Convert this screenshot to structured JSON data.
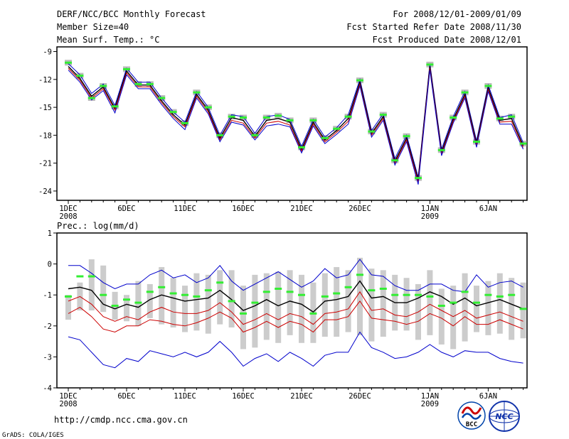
{
  "header": {
    "title": "DERF/NCC/BCC Monthly Forecast",
    "member_size": "Member Size=40",
    "variable": "Mean Surf. Temp.: °C",
    "period": "For 2008/12/01-2009/01/09",
    "fcst_started": "Fcst Started Refer Date 2008/11/30",
    "fcst_produced": "Fcst Produced Date 2008/12/01"
  },
  "footer": {
    "url": "http://cmdp.ncc.cma.gov.cn",
    "grads": "GrADS: COLA/IGES",
    "logo_bcc": "BCC",
    "logo_ncc": "NCC"
  },
  "colors": {
    "ensemble_mean": "#000000",
    "upper_member": "#0000cc",
    "lower_member": "#cc0000",
    "observed_marker": "#33ee33",
    "spread_bar": "#cccccc"
  },
  "chart_data": [
    {
      "type": "line",
      "title": "Mean Surf. Temp.: °C",
      "ylabel": "°C",
      "ylim": [
        -25,
        -8.5
      ],
      "yticks": [
        "-9",
        "-12",
        "-15",
        "-18",
        "-21",
        "-24"
      ],
      "ytick_values": [
        -9,
        -12,
        -15,
        -18,
        -21,
        -24
      ],
      "x_days": [
        1,
        2,
        3,
        4,
        5,
        6,
        7,
        8,
        9,
        10,
        11,
        12,
        13,
        14,
        15,
        16,
        17,
        18,
        19,
        20,
        21,
        22,
        23,
        24,
        25,
        26,
        27,
        28,
        29,
        30,
        31,
        32,
        33,
        34,
        35,
        36,
        37,
        38,
        39,
        40
      ],
      "xtick_days": [
        1,
        6,
        11,
        16,
        21,
        26,
        32,
        37
      ],
      "xtick_labels": [
        "1DEC",
        "6DEC",
        "11DEC",
        "16DEC",
        "21DEC",
        "26DEC",
        "1JAN",
        "6JAN"
      ],
      "xtick_years": [
        "2008",
        "",
        "",
        "",
        "",
        "",
        "2009",
        ""
      ],
      "series": [
        {
          "name": "upper",
          "color": "#0000cc",
          "values": [
            -10.3,
            -11.5,
            -13.5,
            -12.5,
            -14.8,
            -10.8,
            -12.3,
            -12.3,
            -14.0,
            -15.5,
            -16.6,
            -13.3,
            -15.0,
            -18.0,
            -15.8,
            -16.0,
            -17.8,
            -16.0,
            -15.8,
            -16.3,
            -19.2,
            -16.3,
            -18.2,
            -17.2,
            -15.8,
            -12.0,
            -17.5,
            -15.7,
            -20.5,
            -18.0,
            -22.5,
            -10.3,
            -19.5,
            -16.0,
            -13.3,
            -18.6,
            -12.6,
            -16.1,
            -15.8,
            -18.8
          ]
        },
        {
          "name": "mean",
          "color": "#000000",
          "values": [
            -10.6,
            -11.9,
            -13.8,
            -12.8,
            -15.1,
            -11.1,
            -12.6,
            -12.6,
            -14.3,
            -15.8,
            -16.9,
            -13.6,
            -15.3,
            -18.3,
            -16.1,
            -16.4,
            -18.1,
            -16.4,
            -16.2,
            -16.6,
            -19.5,
            -16.6,
            -18.5,
            -17.5,
            -16.2,
            -12.3,
            -17.8,
            -16.0,
            -20.8,
            -18.3,
            -22.8,
            -10.6,
            -19.8,
            -16.3,
            -13.6,
            -18.9,
            -12.9,
            -16.4,
            -16.2,
            -19.1
          ]
        },
        {
          "name": "lower",
          "color": "#cc0000",
          "values": [
            -10.8,
            -12.1,
            -14.0,
            -13.0,
            -15.3,
            -11.3,
            -12.8,
            -12.8,
            -14.5,
            -16.0,
            -17.1,
            -13.8,
            -15.5,
            -18.5,
            -16.4,
            -16.7,
            -18.3,
            -16.7,
            -16.5,
            -16.9,
            -19.7,
            -16.8,
            -18.7,
            -17.7,
            -16.5,
            -12.5,
            -18.0,
            -16.2,
            -21.0,
            -18.5,
            -23.0,
            -10.8,
            -20.0,
            -16.5,
            -13.8,
            -19.1,
            -13.1,
            -16.6,
            -16.5,
            -19.3
          ]
        },
        {
          "name": "lower-envelope",
          "color": "#0000cc",
          "values": [
            -11.0,
            -12.3,
            -14.2,
            -13.2,
            -15.6,
            -11.5,
            -13.0,
            -13.0,
            -14.7,
            -16.2,
            -17.4,
            -14.0,
            -15.7,
            -18.7,
            -16.6,
            -16.9,
            -18.5,
            -17.0,
            -16.8,
            -17.1,
            -19.9,
            -17.0,
            -18.9,
            -17.9,
            -16.8,
            -12.7,
            -18.2,
            -16.4,
            -21.2,
            -18.7,
            -23.3,
            -11.0,
            -20.2,
            -16.7,
            -14.0,
            -19.3,
            -13.3,
            -16.8,
            -16.8,
            -19.5
          ]
        }
      ],
      "observed": [
        -10.2,
        -11.6,
        -14.0,
        -12.7,
        -14.9,
        -10.9,
        -12.5,
        -12.5,
        -14.0,
        -15.5,
        -16.7,
        -13.4,
        -15.0,
        -18.0,
        -16.0,
        -16.1,
        -18.0,
        -16.1,
        -15.9,
        -16.4,
        -19.3,
        -16.4,
        -18.3,
        -17.3,
        -16.0,
        -12.1,
        -17.6,
        -15.8,
        -20.7,
        -18.1,
        -22.6,
        -10.4,
        -19.6,
        -16.1,
        -13.4,
        -18.7,
        -12.7,
        -16.2,
        -16.0,
        -18.9
      ]
    },
    {
      "type": "line",
      "title": "Prec.: log(mm/d)",
      "ylabel": "log(mm/d)",
      "ylim": [
        -4,
        1
      ],
      "yticks": [
        "1",
        "0",
        "-1",
        "-2",
        "-3",
        "-4"
      ],
      "ytick_values": [
        1,
        0,
        -1,
        -2,
        -3,
        -4
      ],
      "x_days": [
        1,
        2,
        3,
        4,
        5,
        6,
        7,
        8,
        9,
        10,
        11,
        12,
        13,
        14,
        15,
        16,
        17,
        18,
        19,
        20,
        21,
        22,
        23,
        24,
        25,
        26,
        27,
        28,
        29,
        30,
        31,
        32,
        33,
        34,
        35,
        36,
        37,
        38,
        39,
        40
      ],
      "xtick_days": [
        1,
        6,
        11,
        16,
        21,
        26,
        32,
        37
      ],
      "xtick_labels": [
        "1DEC",
        "6DEC",
        "11DEC",
        "16DEC",
        "21DEC",
        "26DEC",
        "1JAN",
        "6JAN"
      ],
      "xtick_years": [
        "2008",
        "",
        "",
        "",
        "",
        "",
        "2009",
        ""
      ],
      "series": [
        {
          "name": "max",
          "color": "#0000cc",
          "values": [
            -0.05,
            -0.05,
            -0.3,
            -0.6,
            -0.8,
            -0.65,
            -0.65,
            -0.35,
            -0.2,
            -0.45,
            -0.35,
            -0.6,
            -0.45,
            -0.05,
            -0.55,
            -0.85,
            -0.65,
            -0.45,
            -0.25,
            -0.5,
            -0.75,
            -0.55,
            -0.15,
            -0.45,
            -0.35,
            0.15,
            -0.35,
            -0.4,
            -0.7,
            -0.85,
            -0.85,
            -0.65,
            -0.65,
            -0.85,
            -0.9,
            -0.35,
            -0.75,
            -0.6,
            -0.55,
            -0.75
          ]
        },
        {
          "name": "mean",
          "color": "#000000",
          "values": [
            -0.8,
            -0.75,
            -0.85,
            -1.3,
            -1.45,
            -1.3,
            -1.4,
            -1.15,
            -1.0,
            -1.1,
            -1.2,
            -1.15,
            -1.1,
            -0.85,
            -1.15,
            -1.5,
            -1.35,
            -1.15,
            -1.35,
            -1.2,
            -1.3,
            -1.55,
            -1.2,
            -1.15,
            -1.05,
            -0.55,
            -1.1,
            -1.05,
            -1.25,
            -1.25,
            -1.1,
            -0.9,
            -1.05,
            -1.3,
            -1.1,
            -1.35,
            -1.25,
            -1.15,
            -1.3,
            -1.45
          ]
        },
        {
          "name": "lower",
          "color": "#cc0000",
          "values": [
            -1.2,
            -1.05,
            -1.3,
            -1.7,
            -1.85,
            -1.7,
            -1.8,
            -1.55,
            -1.4,
            -1.55,
            -1.6,
            -1.6,
            -1.5,
            -1.25,
            -1.55,
            -1.95,
            -1.8,
            -1.6,
            -1.8,
            -1.6,
            -1.7,
            -1.95,
            -1.6,
            -1.55,
            -1.45,
            -0.9,
            -1.5,
            -1.45,
            -1.65,
            -1.7,
            -1.55,
            -1.3,
            -1.5,
            -1.7,
            -1.5,
            -1.75,
            -1.65,
            -1.55,
            -1.7,
            -1.85
          ]
        },
        {
          "name": "lower-red",
          "color": "#cc0000",
          "values": [
            -1.6,
            -1.4,
            -1.7,
            -2.1,
            -2.2,
            -2.0,
            -2.0,
            -1.8,
            -1.85,
            -1.95,
            -2.0,
            -1.9,
            -1.75,
            -1.55,
            -1.75,
            -2.2,
            -2.05,
            -1.85,
            -2.05,
            -1.85,
            -1.95,
            -2.2,
            -1.8,
            -1.8,
            -1.7,
            -1.2,
            -1.75,
            -1.8,
            -1.85,
            -1.95,
            -1.85,
            -1.6,
            -1.75,
            -2.0,
            -1.7,
            -1.95,
            -1.95,
            -1.8,
            -1.95,
            -2.1
          ]
        },
        {
          "name": "min",
          "color": "#0000cc",
          "values": [
            -2.35,
            -2.45,
            -2.85,
            -3.25,
            -3.35,
            -3.05,
            -3.15,
            -2.8,
            -2.9,
            -3.0,
            -2.85,
            -3.0,
            -2.85,
            -2.5,
            -2.85,
            -3.3,
            -3.05,
            -2.9,
            -3.15,
            -2.85,
            -3.05,
            -3.3,
            -2.95,
            -2.85,
            -2.85,
            -2.2,
            -2.7,
            -2.85,
            -3.05,
            -3.0,
            -2.85,
            -2.6,
            -2.85,
            -3.0,
            -2.8,
            -2.85,
            -2.85,
            -3.05,
            -3.15,
            -3.2
          ]
        }
      ],
      "observed": [
        -1.05,
        -0.4,
        -0.4,
        -1.0,
        -1.35,
        -1.15,
        -1.25,
        -0.9,
        -0.75,
        -0.95,
        -1.0,
        -1.05,
        -0.85,
        -0.6,
        -1.2,
        -1.6,
        -1.25,
        -0.9,
        -0.8,
        -0.9,
        -1.0,
        -1.6,
        -1.05,
        -0.95,
        -0.75,
        -0.35,
        -0.85,
        -0.8,
        -1.0,
        -1.0,
        -1.0,
        -1.05,
        -1.35,
        -1.25,
        -0.9,
        -1.25,
        -1.0,
        -1.05,
        -1.0,
        -1.45
      ],
      "spread": [
        [
          -1.0,
          -1.8
        ],
        [
          -0.6,
          -1.5
        ],
        [
          0.15,
          -1.5
        ],
        [
          -0.05,
          -1.55
        ],
        [
          -0.9,
          -1.8
        ],
        [
          -1.0,
          -1.85
        ],
        [
          -0.55,
          -2.0
        ],
        [
          -0.65,
          -1.75
        ],
        [
          -0.1,
          -1.95
        ],
        [
          -0.45,
          -2.05
        ],
        [
          -0.7,
          -2.2
        ],
        [
          -0.3,
          -2.15
        ],
        [
          -0.35,
          -2.25
        ],
        [
          -0.2,
          -1.95
        ],
        [
          -0.2,
          -2.05
        ],
        [
          -0.7,
          -2.75
        ],
        [
          -0.35,
          -2.7
        ],
        [
          -0.3,
          -2.45
        ],
        [
          -0.25,
          -2.55
        ],
        [
          -0.2,
          -2.3
        ],
        [
          -0.35,
          -2.55
        ],
        [
          -0.6,
          -2.55
        ],
        [
          -0.3,
          -2.35
        ],
        [
          -0.1,
          -2.35
        ],
        [
          -0.2,
          -2.2
        ],
        [
          0.2,
          -2.3
        ],
        [
          -0.15,
          -2.5
        ],
        [
          -0.2,
          -2.35
        ],
        [
          -0.35,
          -2.15
        ],
        [
          -0.45,
          -2.15
        ],
        [
          -0.65,
          -2.45
        ],
        [
          -0.2,
          -2.3
        ],
        [
          -0.8,
          -2.6
        ],
        [
          -0.7,
          -2.75
        ],
        [
          -0.3,
          -2.5
        ],
        [
          -0.7,
          -2.2
        ],
        [
          -0.55,
          -2.3
        ],
        [
          -0.3,
          -2.25
        ],
        [
          -0.45,
          -2.45
        ],
        [
          -0.6,
          -2.4
        ]
      ]
    }
  ]
}
